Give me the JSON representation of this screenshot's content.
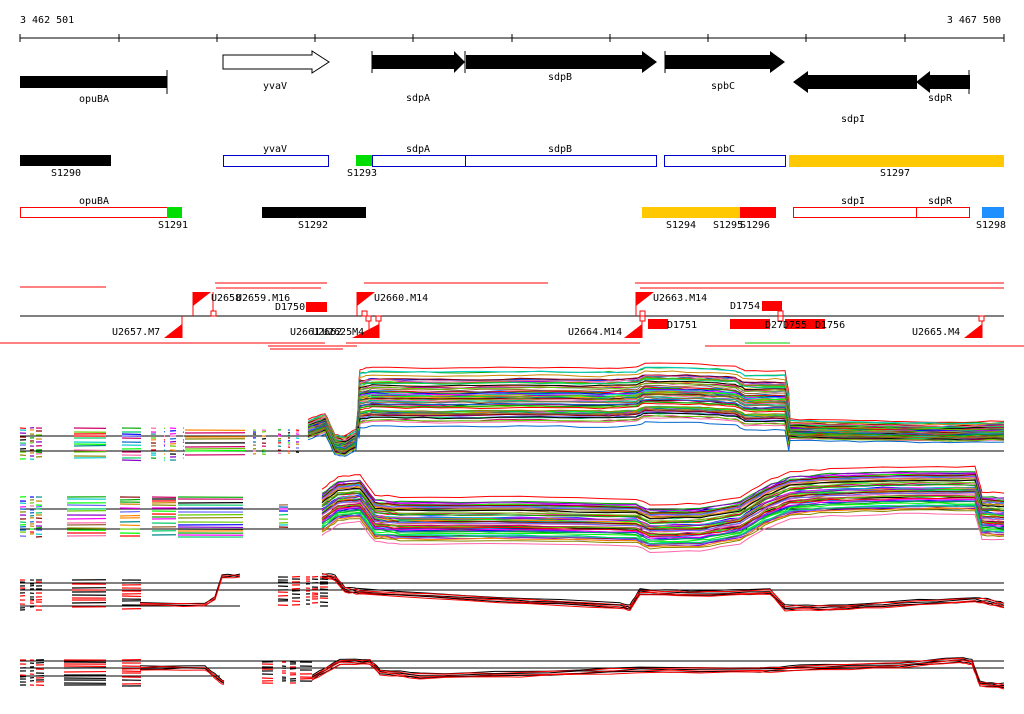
{
  "coords": {
    "start": "3 462 501",
    "end": "3 467 500"
  },
  "genes": [
    {
      "name": "opuBA",
      "strand": "-",
      "kind": "bar"
    },
    {
      "name": "yvaV",
      "strand": "+",
      "kind": "hollow"
    },
    {
      "name": "sdpA",
      "strand": "+",
      "kind": "arrow"
    },
    {
      "name": "sdpB",
      "strand": "+",
      "kind": "arrow"
    },
    {
      "name": "spbC",
      "strand": "+",
      "kind": "arrow"
    },
    {
      "name": "sdpI",
      "strand": "-",
      "kind": "arrow"
    },
    {
      "name": "sdpR",
      "strand": "-",
      "kind": "arrow"
    }
  ],
  "segments_row1": [
    {
      "label": "S1290",
      "color": "#000000"
    },
    {
      "label": "yvaV",
      "color": "hollow-blue"
    },
    {
      "label": "S1293",
      "color": "#00dd00"
    },
    {
      "label": "sdpA",
      "color": "hollow-blue"
    },
    {
      "label": "sdpB",
      "color": "hollow-blue"
    },
    {
      "label": "spbC",
      "color": "hollow-blue"
    },
    {
      "label": "S1297",
      "color": "#ffc800"
    }
  ],
  "segments_row2": [
    {
      "label": "opuBA",
      "color": "hollow-red"
    },
    {
      "label": "S1291",
      "color": "#00dd00"
    },
    {
      "label": "S1292",
      "color": "#000000"
    },
    {
      "label": "S1294",
      "color": "#ffc800"
    },
    {
      "label": "S1295",
      "color": "#ff0000"
    },
    {
      "label": "S1296",
      "color": "#ff0000"
    },
    {
      "label": "sdpI",
      "color": "hollow-red"
    },
    {
      "label": "sdpR",
      "color": "hollow-red"
    },
    {
      "label": "S1298",
      "color": "#1e90ff"
    }
  ],
  "features_above": [
    "U2658",
    "U2659.M16",
    "U2660.M14",
    "U2663.M14",
    "D1750",
    "D1754"
  ],
  "features_below": [
    "U2657.M7",
    "U2661",
    "U2662",
    "U2625M4",
    "U2664.M14",
    "U2665.M4",
    "D1751",
    "D27",
    "D755",
    "D1756"
  ],
  "colors": {
    "feature": "#ff0000",
    "blue": "#0000cc",
    "yellow": "#ffc800",
    "green": "#00dd00",
    "cyan": "#1e90ff"
  }
}
